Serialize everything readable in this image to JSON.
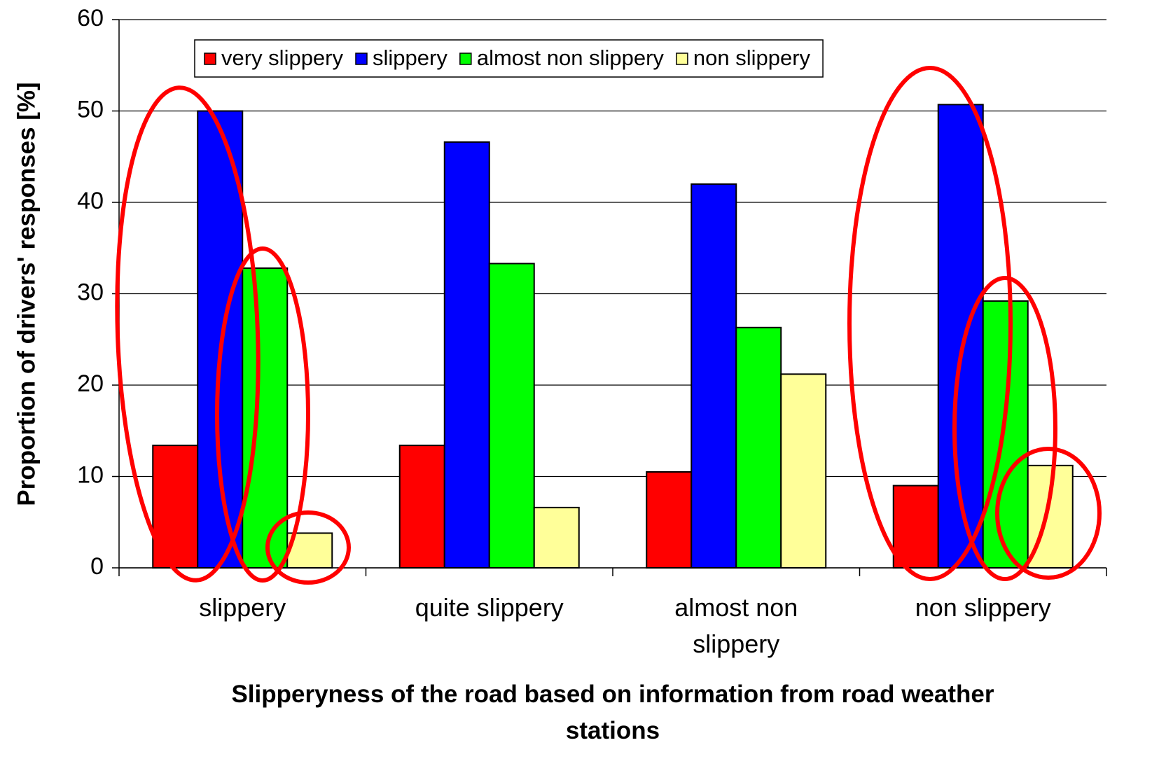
{
  "chart_data": {
    "type": "bar",
    "xlabel": "Slipperyness of the road based on information from road weather stations",
    "ylabel": "Proportion of drivers' responses [%]",
    "categories": [
      "slippery",
      "quite slippery",
      "almost non slippery",
      "non slippery"
    ],
    "series": [
      {
        "name": "very slippery",
        "color": "#ff0000",
        "values": [
          13.4,
          13.4,
          10.5,
          9.0
        ]
      },
      {
        "name": "slippery",
        "color": "#0000ff",
        "values": [
          50.0,
          46.6,
          42.0,
          50.7
        ]
      },
      {
        "name": "almost non slippery",
        "color": "#00ff00",
        "values": [
          32.8,
          33.3,
          26.3,
          29.2
        ]
      },
      {
        "name": "non slippery",
        "color": "#ffff99",
        "values": [
          3.8,
          6.6,
          21.2,
          11.2
        ]
      }
    ],
    "ylim": [
      0,
      60
    ],
    "yticks": [
      0,
      10,
      20,
      30,
      40,
      50,
      60
    ],
    "grid": true,
    "legend": "top"
  }
}
